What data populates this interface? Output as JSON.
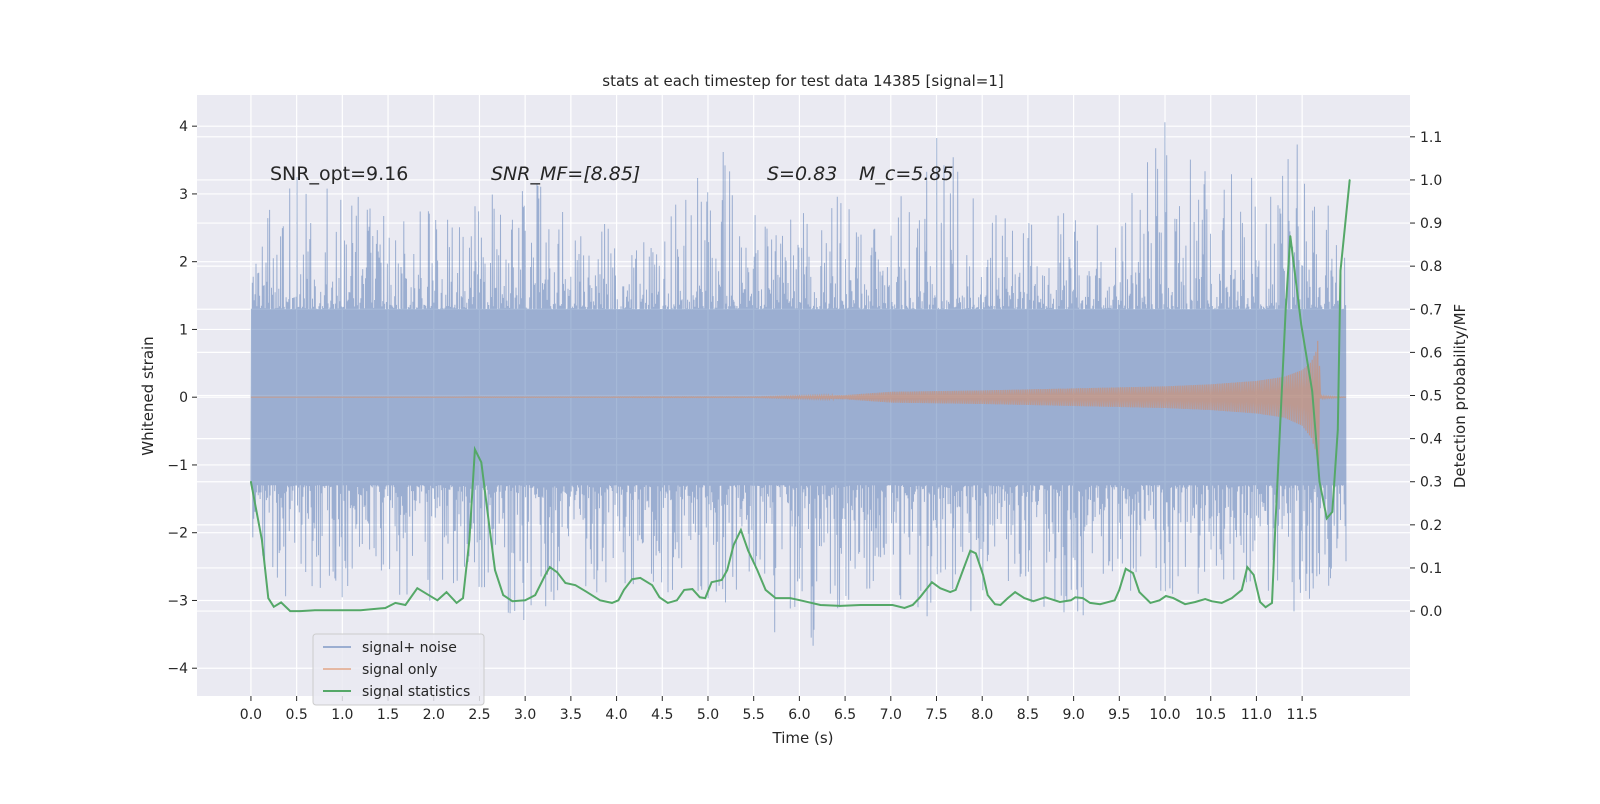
{
  "chart_data": {
    "type": "line",
    "title": "stats at each timestep for test data 14385 [signal=1]",
    "xlabel": "Time (s)",
    "ylabel": "Whitened strain",
    "y2label": "Detection probability/MF",
    "xlim": [
      -0.59,
      12.68
    ],
    "ylim": [
      -4.41,
      4.46
    ],
    "y2lim": [
      -0.197,
      1.197
    ],
    "xticks": [
      "0.0",
      "0.5",
      "1.0",
      "1.5",
      "2.0",
      "2.5",
      "3.0",
      "3.5",
      "4.0",
      "4.5",
      "5.0",
      "5.5",
      "6.0",
      "6.5",
      "7.0",
      "7.5",
      "8.0",
      "8.5",
      "9.0",
      "9.5",
      "10.0",
      "10.5",
      "11.0",
      "11.5"
    ],
    "yticks": [
      4,
      3,
      2,
      1,
      0,
      -1,
      -2,
      -3,
      -4
    ],
    "y2ticks": [
      "0.0",
      "0.1",
      "0.2",
      "0.3",
      "0.4",
      "0.5",
      "0.6",
      "0.7",
      "0.8",
      "0.9",
      "1.0",
      "1.1"
    ],
    "grid": true,
    "legend_position": "lower-left",
    "annotations": [
      {
        "text": "SNR_opt=9.16",
        "italic": false
      },
      {
        "text": "SNR_MF=[8.85]",
        "italic": true,
        "main": "SNR",
        "sub": "M",
        "rest": "F=[8.85]"
      },
      {
        "text": "S=0.83",
        "italic": true,
        "main": "S",
        "rest": "=0.83"
      },
      {
        "text": "M_c=5.85",
        "italic": true,
        "main": "M",
        "sub": "c",
        "rest": "=5.85"
      }
    ],
    "series": [
      {
        "name": "signal+ noise",
        "color": "#4c72b0",
        "alpha": 0.5,
        "axis": "left",
        "t_range": [
          0,
          11.98
        ],
        "core_band": 1.3,
        "envelope_t": [
          0,
          0.5,
          1.0,
          1.5,
          2.0,
          2.5,
          3.0,
          3.5,
          4.0,
          4.5,
          5.0,
          5.5,
          6.0,
          6.5,
          7.0,
          7.5,
          8.0,
          8.5,
          9.0,
          9.5,
          10.0,
          10.5,
          11.0,
          11.5,
          11.98
        ],
        "envelope_upper": [
          2.5,
          3.3,
          3.2,
          2.8,
          2.8,
          2.9,
          3.3,
          2.8,
          2.5,
          2.4,
          4.0,
          3.3,
          2.7,
          3.1,
          2.8,
          3.95,
          3.3,
          2.6,
          3.0,
          2.8,
          4.1,
          3.4,
          3.4,
          3.85,
          2.2
        ],
        "envelope_lower": [
          -2.5,
          -3.1,
          -3.0,
          -3.0,
          -3.1,
          -3.1,
          -3.4,
          -3.0,
          -2.8,
          -2.9,
          -3.0,
          -3.2,
          -4.0,
          -3.0,
          -2.9,
          -3.4,
          -3.1,
          -3.2,
          -3.4,
          -2.9,
          -3.0,
          -2.9,
          -3.1,
          -3.2,
          -2.7
        ]
      },
      {
        "name": "signal only",
        "color": "#dd8452",
        "alpha": 0.5,
        "axis": "left",
        "envelope_t": [
          0,
          5.5,
          6.5,
          7.0,
          8.0,
          9.0,
          10.0,
          10.5,
          11.0,
          11.3,
          11.5,
          11.6,
          11.66,
          11.68,
          11.7,
          11.98
        ],
        "envelope_upper": [
          0,
          0.005,
          0.03,
          0.08,
          0.1,
          0.13,
          0.16,
          0.19,
          0.24,
          0.3,
          0.4,
          0.52,
          0.7,
          0.95,
          0.02,
          0
        ],
        "envelope_lower": [
          0,
          -0.005,
          -0.03,
          -0.08,
          -0.1,
          -0.13,
          -0.16,
          -0.19,
          -0.24,
          -0.3,
          -0.42,
          -0.6,
          -0.85,
          -1.2,
          -0.02,
          0
        ]
      },
      {
        "name": "signal statistics",
        "color": "#55a868",
        "axis": "right",
        "x": [
          0,
          0.12,
          0.19,
          0.25,
          0.33,
          0.43,
          0.54,
          0.7,
          0.97,
          1.2,
          1.47,
          1.58,
          1.69,
          1.82,
          1.93,
          2.04,
          2.14,
          2.25,
          2.32,
          2.39,
          2.45,
          2.52,
          2.6,
          2.67,
          2.76,
          2.86,
          3.0,
          3.11,
          3.22,
          3.27,
          3.35,
          3.44,
          3.55,
          3.66,
          3.82,
          3.95,
          4.02,
          4.08,
          4.17,
          4.26,
          4.39,
          4.47,
          4.56,
          4.66,
          4.74,
          4.83,
          4.91,
          4.97,
          5.04,
          5.15,
          5.21,
          5.28,
          5.36,
          5.44,
          5.54,
          5.63,
          5.74,
          5.9,
          6.01,
          6.23,
          6.45,
          6.67,
          6.89,
          7.02,
          7.15,
          7.24,
          7.32,
          7.45,
          7.54,
          7.65,
          7.71,
          7.79,
          7.87,
          7.93,
          8.01,
          8.06,
          8.14,
          8.2,
          8.28,
          8.36,
          8.46,
          8.56,
          8.69,
          8.85,
          8.97,
          9.02,
          9.1,
          9.18,
          9.29,
          9.45,
          9.5,
          9.57,
          9.65,
          9.72,
          9.84,
          9.94,
          10.01,
          10.09,
          10.22,
          10.33,
          10.44,
          10.51,
          10.62,
          10.73,
          10.84,
          10.9,
          10.97,
          11.04,
          11.1,
          11.17,
          11.21,
          11.32,
          11.37,
          11.49,
          11.61,
          11.69,
          11.77,
          11.83,
          11.89,
          11.92,
          12.02
        ],
        "values": [
          0.3,
          0.165,
          0.03,
          0.01,
          0.02,
          0.0,
          0.0,
          0.002,
          0.002,
          0.002,
          0.007,
          0.019,
          0.014,
          0.053,
          0.039,
          0.025,
          0.044,
          0.019,
          0.03,
          0.165,
          0.375,
          0.345,
          0.21,
          0.095,
          0.037,
          0.023,
          0.025,
          0.037,
          0.084,
          0.102,
          0.09,
          0.065,
          0.06,
          0.046,
          0.025,
          0.019,
          0.025,
          0.049,
          0.074,
          0.077,
          0.06,
          0.032,
          0.019,
          0.025,
          0.049,
          0.051,
          0.032,
          0.03,
          0.067,
          0.072,
          0.095,
          0.153,
          0.188,
          0.14,
          0.095,
          0.049,
          0.03,
          0.03,
          0.025,
          0.014,
          0.012,
          0.014,
          0.014,
          0.014,
          0.007,
          0.014,
          0.032,
          0.067,
          0.053,
          0.044,
          0.049,
          0.095,
          0.14,
          0.134,
          0.084,
          0.037,
          0.016,
          0.014,
          0.03,
          0.044,
          0.03,
          0.023,
          0.032,
          0.021,
          0.025,
          0.032,
          0.03,
          0.019,
          0.016,
          0.025,
          0.049,
          0.098,
          0.088,
          0.044,
          0.019,
          0.025,
          0.035,
          0.03,
          0.016,
          0.021,
          0.028,
          0.023,
          0.019,
          0.03,
          0.049,
          0.102,
          0.084,
          0.021,
          0.009,
          0.019,
          0.21,
          0.7,
          0.87,
          0.665,
          0.51,
          0.3,
          0.215,
          0.23,
          0.42,
          0.79,
          1.0
        ]
      }
    ]
  }
}
